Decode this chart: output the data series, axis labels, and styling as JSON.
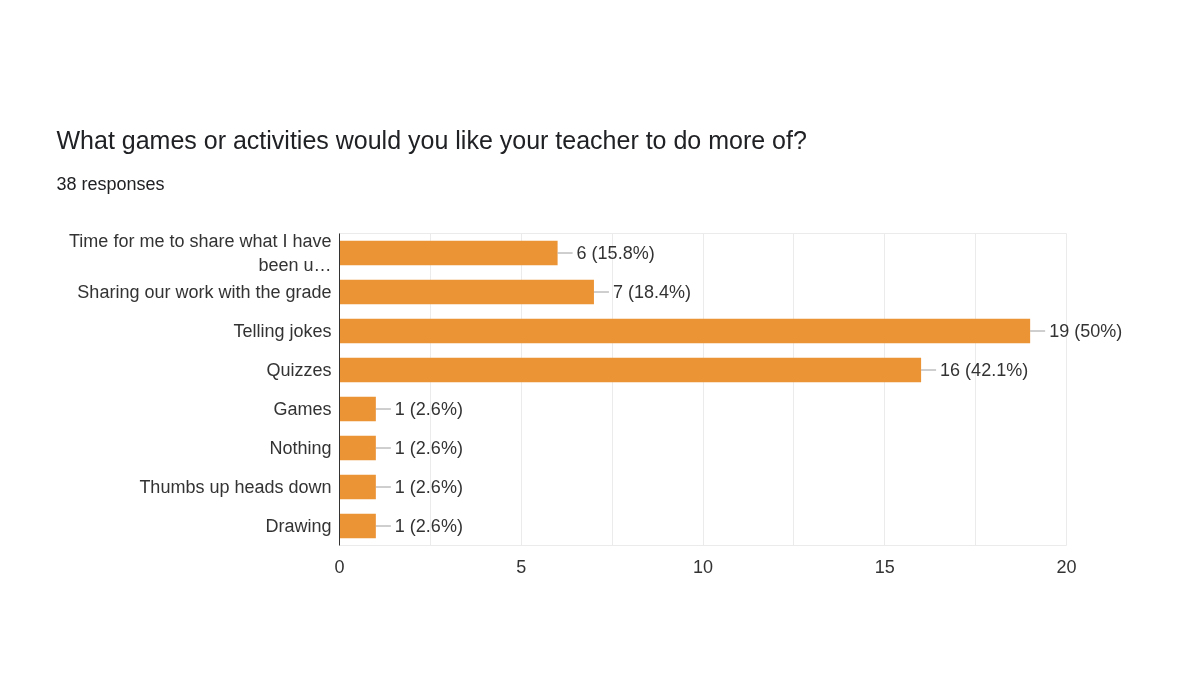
{
  "chart_data": {
    "type": "bar",
    "orientation": "horizontal",
    "title": "What games or activities would you like your teacher to do more of?",
    "subtitle": "38 responses",
    "categories": [
      "Time for me to share what I have been u…",
      "Sharing our work with the grade",
      "Telling jokes",
      "Quizzes",
      "Games",
      "Nothing",
      "Thumbs up heads down",
      "Drawing"
    ],
    "values": [
      6,
      7,
      19,
      16,
      1,
      1,
      1,
      1
    ],
    "color": "#eb9436",
    "value_labels": [
      "6 (15.8%)",
      "7 (18.4%)",
      "19 (50%)",
      "16 (42.1%)",
      "1 (2.6%)",
      "1 (2.6%)",
      "1 (2.6%)",
      "1 (2.6%)"
    ],
    "xlim": [
      0,
      20
    ],
    "xticks": [
      0,
      {
        "value": 2.5,
        "label": null
      },
      5,
      {
        "value": 7.5,
        "label": null
      },
      10,
      {
        "value": 12.5,
        "label": null
      },
      15,
      {
        "value": 17.5,
        "label": null
      },
      20
    ],
    "grid": "x"
  }
}
